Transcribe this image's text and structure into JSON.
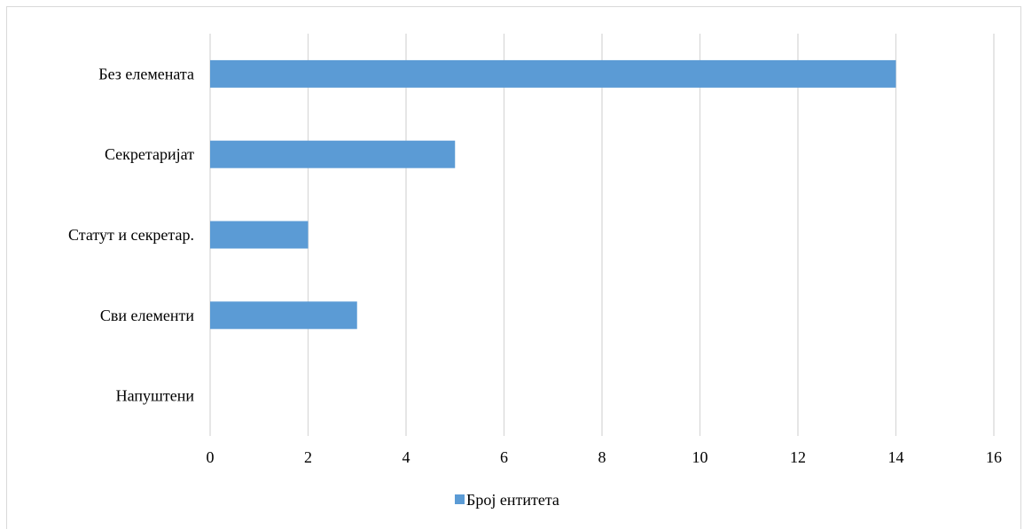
{
  "chart_data": {
    "type": "bar",
    "orientation": "horizontal",
    "categories": [
      "Без елемената",
      "Секретаријат",
      "Статут и секретар.",
      "Сви елементи",
      "Напуштени"
    ],
    "series": [
      {
        "name": "Број ентитета",
        "values": [
          14,
          5,
          2,
          3,
          0
        ],
        "color": "#5b9bd5"
      }
    ],
    "title": "",
    "xlabel": "",
    "ylabel": "",
    "xlim": [
      0,
      16
    ],
    "xticks": [
      0,
      2,
      4,
      6,
      8,
      10,
      12,
      14,
      16
    ],
    "tick_labels": [
      "0",
      "2",
      "4",
      "6",
      "8",
      "10",
      "12",
      "14",
      "16"
    ],
    "grid": "vertical",
    "grid_color": "#d9d9d9",
    "legend_placement": "bottom-center"
  }
}
